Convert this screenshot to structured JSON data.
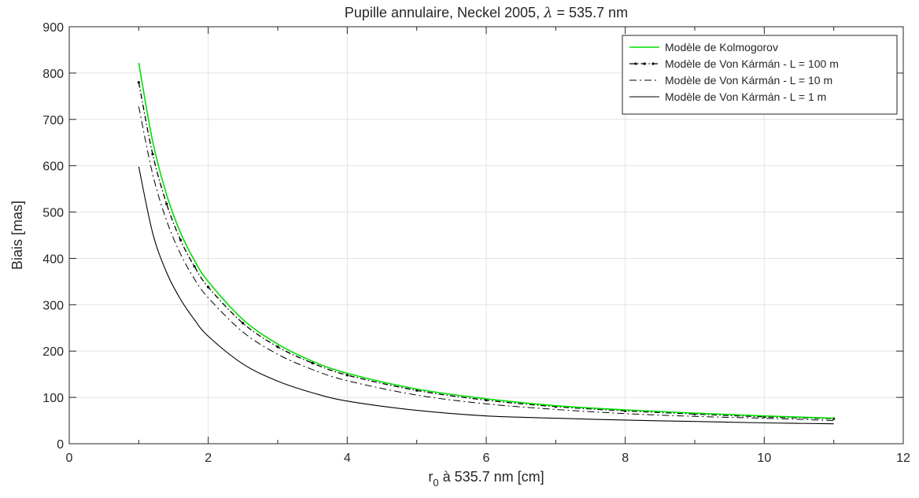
{
  "chart_data": {
    "type": "line",
    "title": {
      "prefix": "Pupille annulaire, Neckel 2005, ",
      "symbol": "λ",
      "suffix": " = 535.7 nm"
    },
    "xlabel": {
      "main": "r",
      "sub": "0",
      "rest": " à 535.7 nm [cm]"
    },
    "ylabel": "Biais [mas]",
    "xlim": [
      0,
      12
    ],
    "ylim": [
      0,
      900
    ],
    "xticks": [
      0,
      2,
      4,
      6,
      8,
      10,
      12
    ],
    "yticks": [
      0,
      100,
      200,
      300,
      400,
      500,
      600,
      700,
      800,
      900
    ],
    "grid": true,
    "legend_position": "top-right",
    "x": [
      1.0,
      1.2,
      1.4,
      1.6,
      1.8,
      2.0,
      2.5,
      3.0,
      3.5,
      4.0,
      5.0,
      6.0,
      7.0,
      8.0,
      9.0,
      10.0,
      11.0
    ],
    "series": [
      {
        "name": "Modèle de Kolmogorov",
        "color": "#00e000",
        "line_style": "solid",
        "values": [
          822,
          653,
          538,
          456,
          396,
          350,
          268,
          215,
          178,
          152,
          118,
          97,
          82,
          73,
          66,
          60,
          55
        ]
      },
      {
        "name": "Modèle de Von Kármán - L = 100 m",
        "color": "#000000",
        "line_style": "dash-dot-markers",
        "values": [
          780,
          625,
          518,
          440,
          383,
          338,
          260,
          209,
          174,
          148,
          115,
          94,
          80,
          71,
          64,
          58,
          54
        ]
      },
      {
        "name": "Modèle de Von Kármán - L = 10 m",
        "color": "#000000",
        "line_style": "dash-dot",
        "values": [
          728,
          582,
          482,
          410,
          356,
          315,
          241,
          193,
          160,
          136,
          105,
          86,
          74,
          65,
          59,
          55,
          50
        ]
      },
      {
        "name": "Modèle de Von Kármán - L = 1 m",
        "color": "#000000",
        "line_style": "solid-thin",
        "values": [
          598,
          455,
          370,
          312,
          268,
          232,
          172,
          135,
          110,
          92,
          72,
          60,
          55,
          51,
          48,
          45,
          43
        ]
      }
    ]
  }
}
